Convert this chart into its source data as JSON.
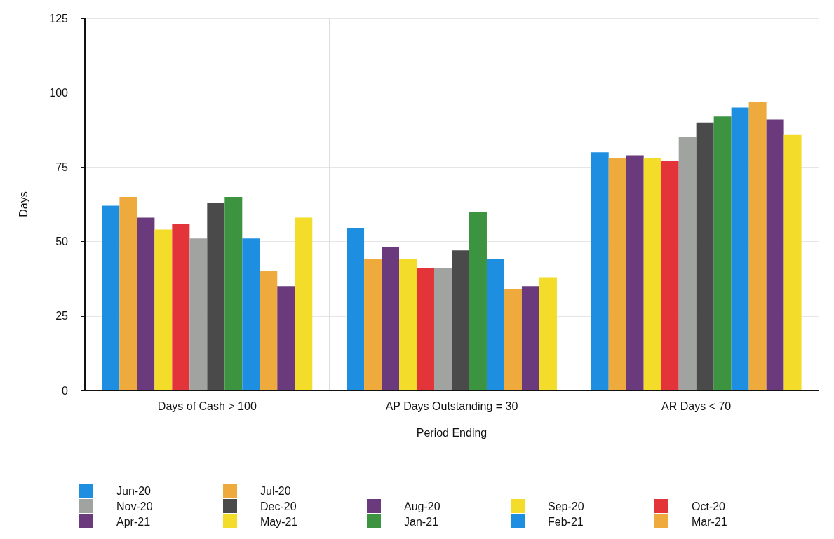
{
  "chart_data": {
    "type": "bar",
    "xlabel": "Period Ending",
    "ylabel": "Days",
    "categories": [
      "Days of Cash > 100",
      "AP Days Outstanding = 30",
      "AR Days < 70"
    ],
    "series": [
      {
        "name": "Jun-20",
        "color": "#1e8fe0",
        "values": [
          62,
          54.5,
          80
        ]
      },
      {
        "name": "Jul-20",
        "color": "#eeaa3c",
        "values": [
          65,
          44,
          78
        ]
      },
      {
        "name": "Aug-20",
        "color": "#6b3a7d",
        "values": [
          58,
          48,
          79
        ]
      },
      {
        "name": "Sep-20",
        "color": "#f3dc2a",
        "values": [
          54,
          44,
          78
        ]
      },
      {
        "name": "Oct-20",
        "color": "#e3343a",
        "values": [
          56,
          41,
          77
        ]
      },
      {
        "name": "Nov-20",
        "color": "#a0a3a0",
        "values": [
          51,
          41,
          85
        ]
      },
      {
        "name": "Dec-20",
        "color": "#4a4a4a",
        "values": [
          63,
          47,
          90
        ]
      },
      {
        "name": "Jan-21",
        "color": "#3d9440",
        "values": [
          65,
          60,
          92
        ]
      },
      {
        "name": "Feb-21",
        "color": "#1e8fe0",
        "values": [
          51,
          44,
          95
        ]
      },
      {
        "name": "Mar-21",
        "color": "#eeaa3c",
        "values": [
          40,
          34,
          97
        ]
      },
      {
        "name": "Apr-21",
        "color": "#6b3a7d",
        "values": [
          35,
          35,
          91
        ]
      },
      {
        "name": "May-21",
        "color": "#f3dc2a",
        "values": [
          58,
          38,
          86
        ]
      }
    ],
    "ylim": [
      0,
      125
    ],
    "yticks": [
      0,
      25,
      50,
      75,
      100,
      125
    ],
    "grid": true,
    "legend": "bottom"
  }
}
